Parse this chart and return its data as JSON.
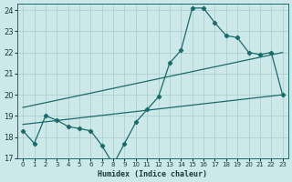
{
  "xlabel": "Humidex (Indice chaleur)",
  "bg_color": "#cce8e8",
  "grid_color": "#aacccc",
  "line_color": "#1a6b6b",
  "xlim": [
    -0.5,
    23.5
  ],
  "ylim": [
    17,
    24.3
  ],
  "xticks": [
    0,
    1,
    2,
    3,
    4,
    5,
    6,
    7,
    8,
    9,
    10,
    11,
    12,
    13,
    14,
    15,
    16,
    17,
    18,
    19,
    20,
    21,
    22,
    23
  ],
  "yticks": [
    17,
    18,
    19,
    20,
    21,
    22,
    23,
    24
  ],
  "series": [
    {
      "x": [
        0,
        1,
        2,
        3,
        4,
        5,
        6,
        7,
        8,
        9,
        10,
        11,
        12,
        13,
        14,
        15,
        16,
        17,
        18,
        19,
        20,
        21,
        22,
        23
      ],
      "y": [
        18.3,
        17.7,
        19.0,
        18.8,
        18.5,
        18.4,
        18.3,
        17.6,
        16.7,
        17.7,
        18.7,
        19.3,
        19.9,
        21.5,
        22.1,
        24.1,
        24.1,
        23.4,
        22.8,
        22.7,
        22.0,
        21.9,
        22.0,
        20.0
      ],
      "has_markers": true,
      "linewidth": 0.9,
      "markersize": 2.2
    },
    {
      "x": [
        0,
        23
      ],
      "y": [
        18.6,
        20.0
      ],
      "has_markers": false,
      "linewidth": 0.9
    },
    {
      "x": [
        0,
        23
      ],
      "y": [
        19.4,
        22.0
      ],
      "has_markers": false,
      "linewidth": 0.9
    }
  ]
}
